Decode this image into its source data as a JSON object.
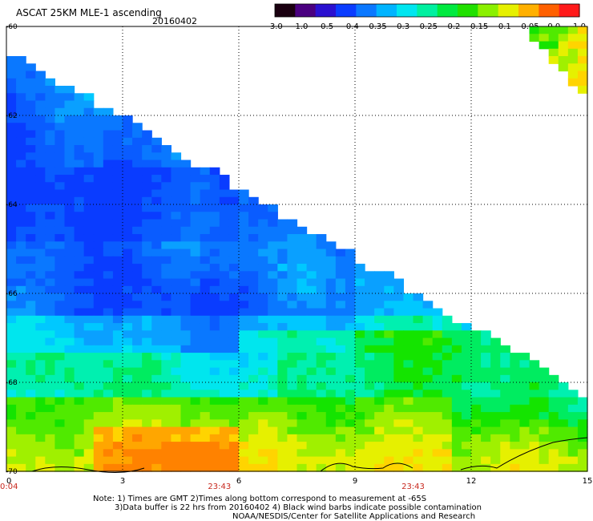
{
  "chart_data": {
    "type": "heatmap",
    "title": "ASCAT 25KM MLE-1 ascending",
    "date": "20160402",
    "colorbar_ticks": [
      "-3.0",
      "-1.0",
      "-0.5",
      "-0.4",
      "-0.35",
      "-0.3",
      "-0.25",
      "-0.2",
      "-0.15",
      "-0.1",
      "-0.05",
      "0.0",
      "1.0"
    ],
    "colorbar_colors": [
      "#1a0010",
      "#4a0080",
      "#2a10d0",
      "#0a3cff",
      "#0a78ff",
      "#00b4ff",
      "#00e6f0",
      "#00f0a0",
      "#00ea40",
      "#20e000",
      "#8af000",
      "#e6f000",
      "#ffb000",
      "#ff6000",
      "#ff1a1a"
    ],
    "x_ticks": [
      0,
      3,
      6,
      9,
      12,
      15
    ],
    "y_ticks": [
      -60,
      -62,
      -64,
      -66,
      -68,
      -70
    ],
    "xlim": [
      0,
      15
    ],
    "ylim": [
      -70,
      -60
    ],
    "grid": true,
    "time_labels": [
      {
        "text": "0:04",
        "x": 0
      },
      {
        "text": "23:43",
        "x": 5.5
      },
      {
        "text": "23:43",
        "x": 10.5
      }
    ],
    "notes": [
      "Note: 1) Times are GMT 2)Times along bottom correspond to measurement at -65S",
      "3)Data buffer is 22 hrs from 20160402 4) Black wind barbs indicate possible contamination",
      "NOAA/NESDIS/Center for Satellite Applications and Research"
    ]
  }
}
